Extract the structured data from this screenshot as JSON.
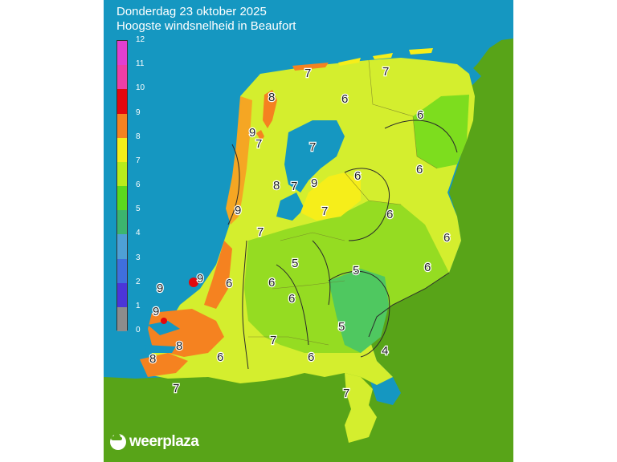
{
  "title_line1": "Donderdag 23 oktober 2025",
  "title_line2": "Hoogste windsnelheid in Beaufort",
  "legend": {
    "ticks": [
      "12",
      "11",
      "10",
      "9",
      "8",
      "7",
      "6",
      "5",
      "4",
      "3",
      "2",
      "1",
      "0"
    ],
    "colors": {
      "12": "#c94fd6",
      "11": "#e23fd0",
      "10": "#ee3ea6",
      "9": "#e3070d",
      "8": "#f58220",
      "7": "#f6ee1a",
      "6": "#b9ec1b",
      "5": "#5bd81e",
      "4": "#3cb56e",
      "3": "#4ea0d6",
      "2": "#3f6fdd",
      "1": "#4b35d8",
      "0": "#8c8c8c"
    }
  },
  "map_labels": [
    "7",
    "7",
    "8",
    "9",
    "7",
    "6",
    "6",
    "7",
    "9",
    "7",
    "6",
    "6",
    "8",
    "9",
    "6",
    "7",
    "6",
    "7",
    "5",
    "6",
    "5",
    "9",
    "6",
    "9",
    "6",
    "6",
    "9",
    "5",
    "8",
    "8",
    "7",
    "6",
    "4",
    "7",
    "7"
  ],
  "logo": "weerplaza",
  "colors": {
    "sea": "#1597c1",
    "land": "#58a418"
  }
}
